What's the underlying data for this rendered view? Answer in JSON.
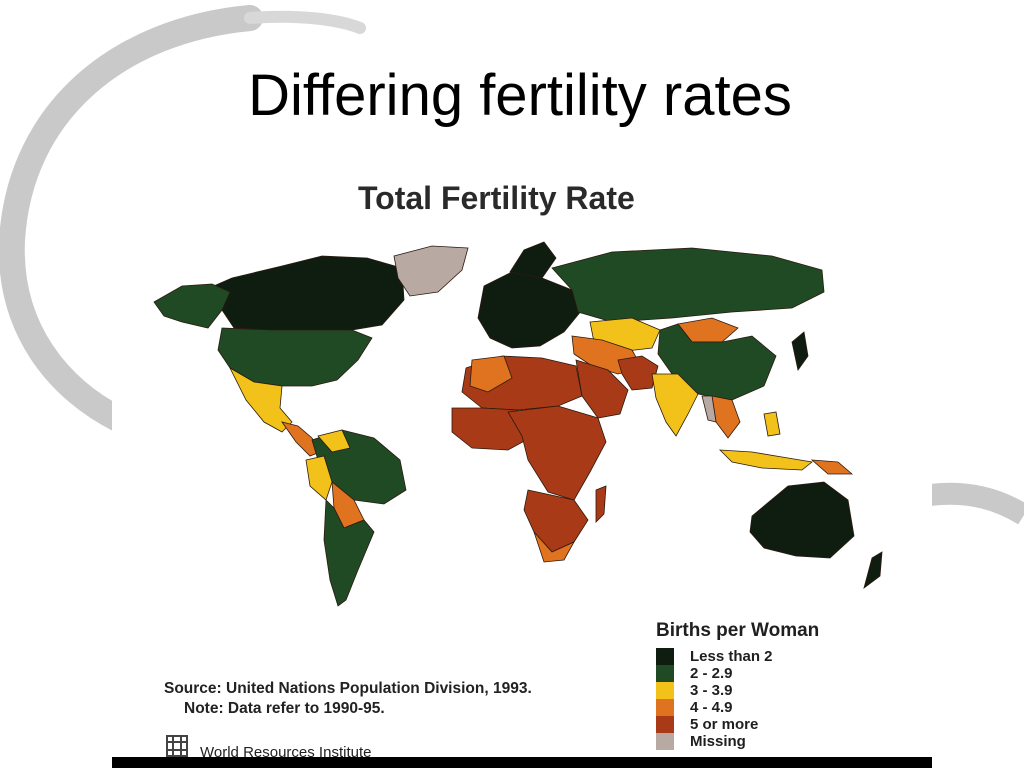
{
  "slide": {
    "title": "Differing fertility rates"
  },
  "map": {
    "heading": "Total Fertility Rate",
    "legend": {
      "title": "Births per Woman",
      "items": [
        {
          "label": "Less than 2",
          "color": "#0f1d10"
        },
        {
          "label": "2 - 2.9",
          "color": "#1f4a24"
        },
        {
          "label": "3 - 3.9",
          "color": "#f2c21b"
        },
        {
          "label": "4 - 4.9",
          "color": "#e0731f"
        },
        {
          "label": "5 or more",
          "color": "#a83a17"
        },
        {
          "label": "Missing",
          "color": "#b8aaa2"
        }
      ]
    },
    "source": "Source: United Nations Population Division, 1993.",
    "note": "Note: Data refer to 1990-95.",
    "publisher": "World Resources Institute"
  }
}
